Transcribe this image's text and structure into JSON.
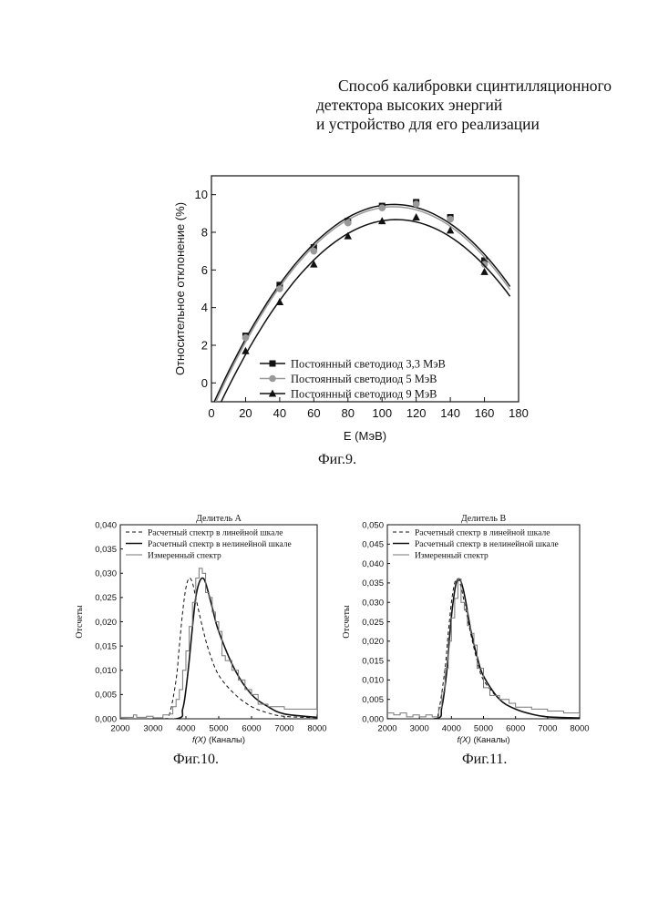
{
  "header": {
    "line1": "Способ калибровки сцинтилляционного",
    "line2": "детектора высоких энергий",
    "line3": "и устройство для его реализации"
  },
  "captions": {
    "fig9": "Фиг.9.",
    "fig10": "Фиг.10.",
    "fig11": "Фиг.11."
  },
  "chart_data": [
    {
      "type": "line",
      "title": "",
      "xlabel": "E (МэВ)",
      "ylabel": "Относительное отклонение (%)",
      "xlim": [
        0,
        180
      ],
      "ylim": [
        -1,
        11
      ],
      "x_ticks": [
        0,
        20,
        40,
        60,
        80,
        100,
        120,
        140,
        160,
        180
      ],
      "y_ticks": [
        0,
        2,
        4,
        6,
        8,
        10
      ],
      "grid": false,
      "legend_position": "bottom-center",
      "series": [
        {
          "name": "Постоянный светодиод 3,3 МэВ",
          "marker": "square",
          "color": "#111111",
          "x": [
            20,
            40,
            60,
            80,
            100,
            120,
            140,
            160
          ],
          "y": [
            2.5,
            5.2,
            7.2,
            8.6,
            9.4,
            9.6,
            8.8,
            6.5
          ]
        },
        {
          "name": "Постоянный светодиод 5 МэВ",
          "marker": "circle",
          "color": "#999999",
          "x": [
            20,
            40,
            60,
            80,
            100,
            120,
            140,
            160
          ],
          "y": [
            2.4,
            5.0,
            7.0,
            8.5,
            9.3,
            9.5,
            8.7,
            6.3
          ]
        },
        {
          "name": "Постоянный светодиод 9 МэВ",
          "marker": "triangle",
          "color": "#111111",
          "x": [
            20,
            40,
            60,
            80,
            100,
            120,
            140,
            160
          ],
          "y": [
            1.7,
            4.3,
            6.3,
            7.8,
            8.6,
            8.8,
            8.1,
            5.9
          ]
        }
      ]
    },
    {
      "type": "line",
      "title": "Делитель А",
      "xlabel_italic": "f(X)",
      "xlabel": "(Каналы)",
      "ylabel": "Отсчеты",
      "xlim": [
        2000,
        8000
      ],
      "ylim": [
        0,
        0.04
      ],
      "x_ticks": [
        2000,
        3000,
        4000,
        5000,
        6000,
        7000,
        8000
      ],
      "y_ticks": [
        "0,000",
        "0,005",
        "0,010",
        "0,015",
        "0,020",
        "0,025",
        "0,030",
        "0,035",
        "0,040"
      ],
      "legend_position": "top-left",
      "series": [
        {
          "name": "Расчетный спектр в линейной шкале",
          "style": "dashed",
          "x": [
            2000,
            3300,
            3500,
            3700,
            3800,
            3900,
            4000,
            4100,
            4200,
            4300,
            4500,
            4700,
            5000,
            5500,
            6000,
            6500,
            7000,
            8000
          ],
          "y": [
            0,
            0,
            0.001,
            0.008,
            0.015,
            0.022,
            0.027,
            0.029,
            0.028,
            0.025,
            0.019,
            0.014,
            0.009,
            0.005,
            0.0025,
            0.0012,
            0.0005,
            0.0002
          ]
        },
        {
          "name": "Расчетный спектр в нелинейной шкале",
          "style": "solid",
          "x": [
            2000,
            3700,
            3900,
            4000,
            4100,
            4200,
            4300,
            4400,
            4500,
            4600,
            4800,
            5000,
            5500,
            6000,
            6500,
            7000,
            8000
          ],
          "y": [
            0,
            0,
            0.002,
            0.006,
            0.012,
            0.019,
            0.025,
            0.028,
            0.029,
            0.028,
            0.023,
            0.018,
            0.01,
            0.005,
            0.0025,
            0.001,
            0.0003
          ]
        },
        {
          "name": "Измеренный спектр",
          "style": "step",
          "x": [
            2000,
            2400,
            2500,
            2800,
            3000,
            3300,
            3500,
            3600,
            3700,
            3800,
            3900,
            4000,
            4100,
            4200,
            4300,
            4400,
            4500,
            4600,
            4700,
            4800,
            4900,
            5000,
            5100,
            5200,
            5400,
            5600,
            5800,
            6000,
            6200,
            6500,
            7000,
            7500,
            8000
          ],
          "y": [
            0.0003,
            0.0008,
            0.0003,
            0.0005,
            0.0002,
            0.0008,
            0.001,
            0.0025,
            0.004,
            0.006,
            0.01,
            0.014,
            0.019,
            0.024,
            0.029,
            0.031,
            0.03,
            0.026,
            0.025,
            0.022,
            0.02,
            0.018,
            0.013,
            0.012,
            0.01,
            0.008,
            0.006,
            0.005,
            0.003,
            0.0025,
            0.002,
            0.002,
            0.001
          ]
        }
      ]
    },
    {
      "type": "line",
      "title": "Делитель В",
      "xlabel_italic": "f(X)",
      "xlabel": "(Каналы)",
      "ylabel": "Отсчеты",
      "xlim": [
        2000,
        8000
      ],
      "ylim": [
        0,
        0.05
      ],
      "x_ticks": [
        2000,
        3000,
        4000,
        5000,
        6000,
        7000,
        8000
      ],
      "y_ticks": [
        "0,000",
        "0,005",
        "0,010",
        "0,015",
        "0,020",
        "0,025",
        "0,030",
        "0,035",
        "0,040",
        "0,045",
        "0,050"
      ],
      "legend_position": "top-left",
      "series": [
        {
          "name": "Расчетный спектр в линейной шкале",
          "style": "dashed",
          "x": [
            2000,
            3400,
            3600,
            3800,
            3900,
            4000,
            4100,
            4200,
            4300,
            4400,
            4600,
            4800,
            5000,
            5500,
            6000,
            6500,
            7000,
            8000
          ],
          "y": [
            0,
            0,
            0.002,
            0.013,
            0.022,
            0.03,
            0.035,
            0.036,
            0.034,
            0.03,
            0.022,
            0.015,
            0.01,
            0.005,
            0.0025,
            0.0012,
            0.0005,
            0.0002
          ]
        },
        {
          "name": "Расчетный спектр в нелинейной шкале",
          "style": "solid",
          "x": [
            2000,
            3500,
            3700,
            3850,
            3950,
            4050,
            4150,
            4250,
            4350,
            4450,
            4600,
            4800,
            5000,
            5500,
            6000,
            6500,
            7000,
            8000
          ],
          "y": [
            0,
            0,
            0.003,
            0.012,
            0.022,
            0.03,
            0.035,
            0.036,
            0.034,
            0.03,
            0.023,
            0.016,
            0.011,
            0.005,
            0.0025,
            0.0012,
            0.0005,
            0.0002
          ]
        },
        {
          "name": "Измеренный спектр",
          "style": "step",
          "x": [
            2000,
            2200,
            2400,
            2600,
            2800,
            3000,
            3200,
            3400,
            3600,
            3700,
            3800,
            3900,
            4000,
            4100,
            4200,
            4300,
            4400,
            4500,
            4600,
            4700,
            4800,
            5000,
            5200,
            5500,
            5800,
            6000,
            6500,
            7000,
            7500,
            8000
          ],
          "y": [
            0.0015,
            0.001,
            0.0015,
            0.0005,
            0.001,
            0.0005,
            0.001,
            0.0005,
            0.003,
            0.007,
            0.013,
            0.02,
            0.026,
            0.031,
            0.036,
            0.03,
            0.028,
            0.024,
            0.022,
            0.019,
            0.013,
            0.008,
            0.006,
            0.005,
            0.004,
            0.003,
            0.0025,
            0.002,
            0.0015,
            0.001
          ]
        }
      ]
    }
  ]
}
